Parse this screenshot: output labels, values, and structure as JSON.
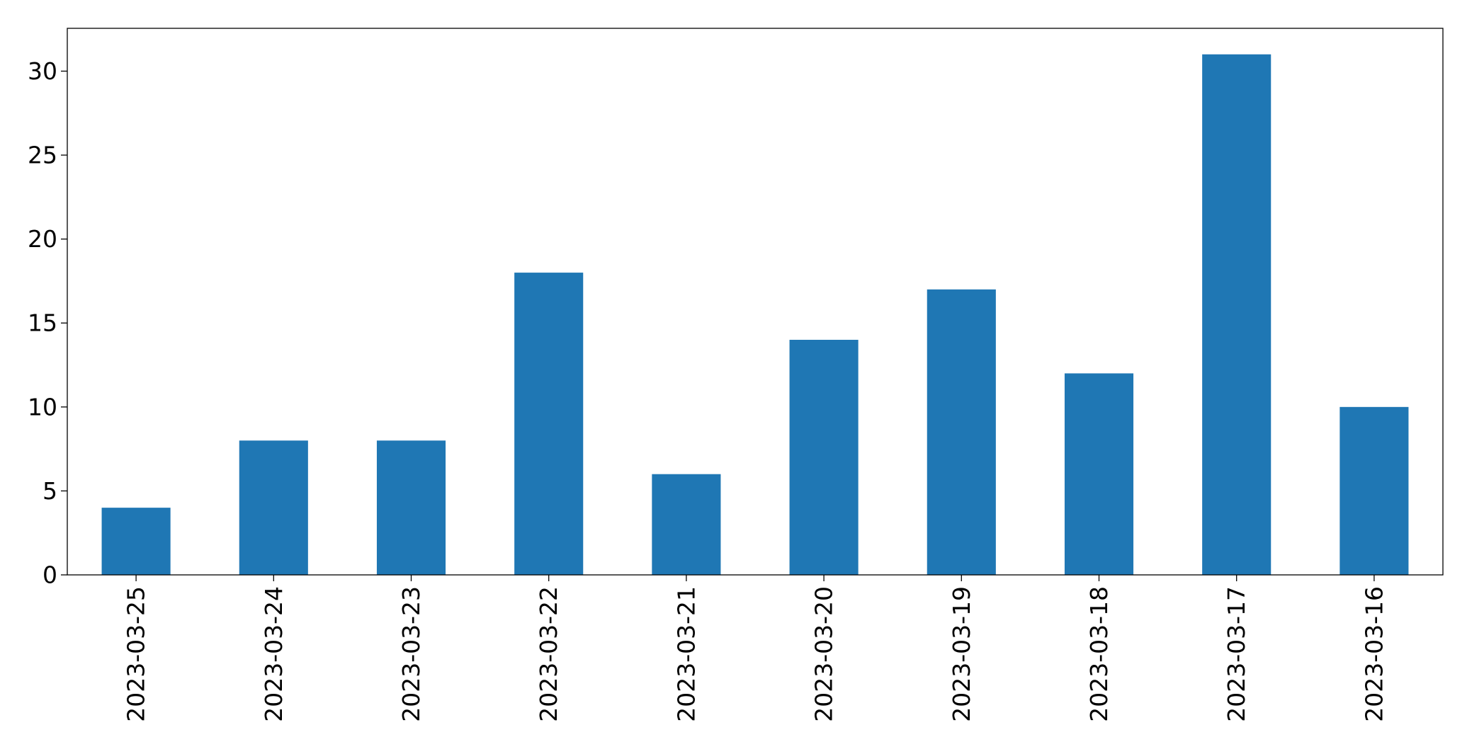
{
  "chart_data": {
    "type": "bar",
    "categories": [
      "2023-03-25",
      "2023-03-24",
      "2023-03-23",
      "2023-03-22",
      "2023-03-21",
      "2023-03-20",
      "2023-03-19",
      "2023-03-18",
      "2023-03-17",
      "2023-03-16"
    ],
    "values": [
      4,
      8,
      8,
      18,
      6,
      14,
      17,
      12,
      31,
      10
    ],
    "title": "",
    "xlabel": "",
    "ylabel": "",
    "ylim": [
      0,
      32.55
    ],
    "yticks": [
      0,
      5,
      10,
      15,
      20,
      25,
      30
    ],
    "grid": false,
    "legend": "none",
    "x_tick_rotation": "vertical",
    "colors": {
      "bar": "#1f77b4",
      "axes": "#000000",
      "background": "#ffffff"
    }
  }
}
